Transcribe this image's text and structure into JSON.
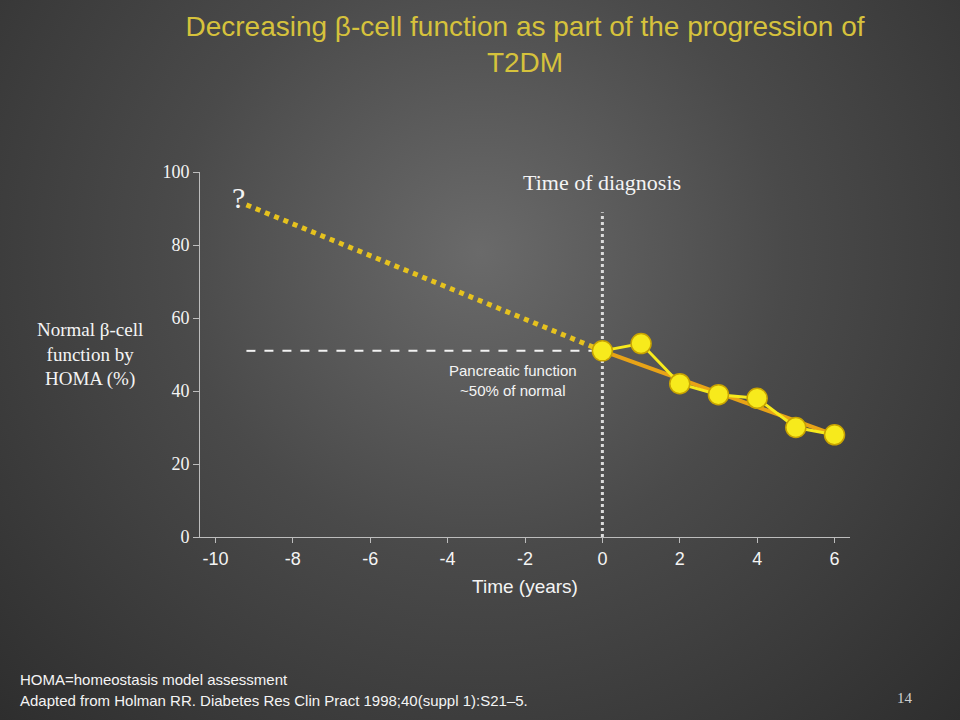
{
  "chart_data": {
    "type": "line",
    "title": "Decreasing β-cell function as part of the progression of T2DM",
    "xlabel": "Time (years)",
    "ylabel": "Normal β-cell function by HOMA (%)",
    "xlim": [
      -10.4,
      6.4
    ],
    "xticks": [
      -10,
      -8,
      -6,
      -4,
      -2,
      0,
      2,
      4,
      6
    ],
    "ylim": [
      0,
      100
    ],
    "yticks": [
      0,
      20,
      40,
      60,
      80,
      100
    ],
    "grid": false,
    "series": [
      {
        "x": [
          -9.2,
          0
        ],
        "values": [
          91,
          51
        ],
        "color": "#e6c21e",
        "line_style": "dot"
      },
      {
        "x": [
          0,
          6
        ],
        "values": [
          51,
          28
        ],
        "color": "#e8a317",
        "line_style": "solid"
      },
      {
        "x": [
          0,
          1,
          2,
          3,
          4,
          5,
          6
        ],
        "values": [
          51,
          53,
          42,
          39,
          38,
          30,
          28
        ],
        "color": "#f7ea1c",
        "marker": "circle",
        "line_style": "solid"
      }
    ],
    "reference_lines": [
      {
        "orientation": "horizontal",
        "y": 51,
        "x": [
          -9.2,
          0
        ],
        "line_style": "dash",
        "color": "#f2f2f2"
      },
      {
        "orientation": "vertical",
        "x": 0,
        "y": [
          0,
          89
        ],
        "line_style": "dot",
        "color": "#dcdcdc"
      }
    ],
    "annotations": [
      {
        "text": "?",
        "x": -9.4,
        "y": 93
      },
      {
        "text": "Time of diagnosis",
        "x": 0,
        "y": 97
      },
      {
        "text": "Pancreatic function ~50% of normal",
        "x": -2.3,
        "y": 43
      }
    ],
    "footnotes": [
      "HOMA=homeostasis model assessment",
      "Adapted from Holman RR. Diabetes Res Clin Pract 1998;40(suppl 1):S21–5."
    ],
    "page_number": "14"
  }
}
